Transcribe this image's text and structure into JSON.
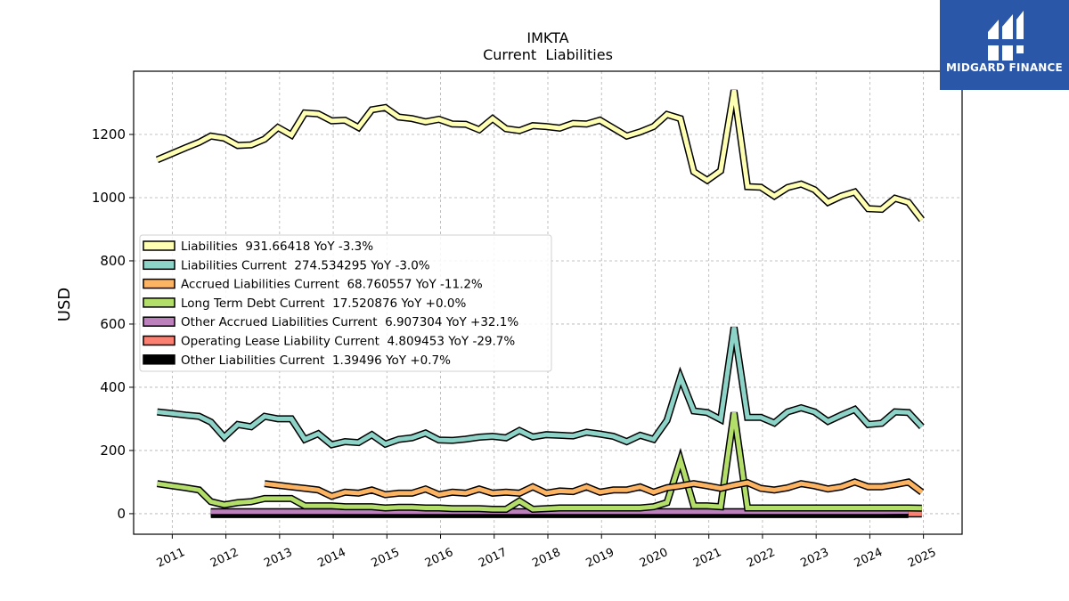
{
  "logo": {
    "text": "MIDGARD FINANCE",
    "bg_color": "#2b57a8"
  },
  "chart_data": {
    "type": "line",
    "title": "IMKTA",
    "subtitle": "Current  Liabilities",
    "ylabel": "USD",
    "xlabel": "",
    "ylim": [
      -65,
      1400
    ],
    "xlim": [
      2010.28,
      2025.72
    ],
    "yticks": [
      0,
      200,
      400,
      600,
      800,
      1000,
      1200
    ],
    "xticks": [
      "2011",
      "2012",
      "2013",
      "2014",
      "2015",
      "2016",
      "2017",
      "2018",
      "2019",
      "2020",
      "2021",
      "2022",
      "2023",
      "2024",
      "2025"
    ],
    "grid": true,
    "legend_position": "center-left",
    "series": [
      {
        "name": "Liabilities",
        "legend": "Liabilities  931.66418 YoY -3.3%",
        "color": "#ffffb3",
        "points": [
          [
            2010.72,
            1120
          ],
          [
            2011.0,
            1140
          ],
          [
            2011.25,
            1158
          ],
          [
            2011.5,
            1175
          ],
          [
            2011.72,
            1195
          ],
          [
            2011.97,
            1188
          ],
          [
            2012.22,
            1165
          ],
          [
            2012.47,
            1167
          ],
          [
            2012.72,
            1185
          ],
          [
            2012.97,
            1222
          ],
          [
            2013.22,
            1198
          ],
          [
            2013.47,
            1268
          ],
          [
            2013.72,
            1265
          ],
          [
            2013.97,
            1243
          ],
          [
            2014.22,
            1245
          ],
          [
            2014.47,
            1222
          ],
          [
            2014.72,
            1278
          ],
          [
            2014.97,
            1285
          ],
          [
            2015.22,
            1255
          ],
          [
            2015.47,
            1250
          ],
          [
            2015.72,
            1240
          ],
          [
            2015.97,
            1248
          ],
          [
            2016.22,
            1233
          ],
          [
            2016.47,
            1232
          ],
          [
            2016.72,
            1215
          ],
          [
            2016.97,
            1250
          ],
          [
            2017.22,
            1218
          ],
          [
            2017.47,
            1212
          ],
          [
            2017.72,
            1228
          ],
          [
            2017.97,
            1225
          ],
          [
            2018.22,
            1220
          ],
          [
            2018.47,
            1235
          ],
          [
            2018.72,
            1233
          ],
          [
            2018.97,
            1245
          ],
          [
            2019.22,
            1220
          ],
          [
            2019.47,
            1195
          ],
          [
            2019.72,
            1208
          ],
          [
            2019.97,
            1225
          ],
          [
            2020.22,
            1263
          ],
          [
            2020.47,
            1250
          ],
          [
            2020.72,
            1082
          ],
          [
            2020.97,
            1055
          ],
          [
            2021.22,
            1085
          ],
          [
            2021.47,
            1340
          ],
          [
            2021.72,
            1035
          ],
          [
            2021.97,
            1033
          ],
          [
            2022.22,
            1005
          ],
          [
            2022.47,
            1032
          ],
          [
            2022.72,
            1043
          ],
          [
            2022.97,
            1025
          ],
          [
            2023.22,
            985
          ],
          [
            2023.47,
            1005
          ],
          [
            2023.72,
            1018
          ],
          [
            2023.97,
            965
          ],
          [
            2024.22,
            963
          ],
          [
            2024.47,
            998
          ],
          [
            2024.72,
            985
          ],
          [
            2024.97,
            930
          ]
        ]
      },
      {
        "name": "Liabilities Current",
        "legend": "Liabilities Current  274.534295 YoY -3.0%",
        "color": "#8dd3c7",
        "points": [
          [
            2010.72,
            322
          ],
          [
            2011.0,
            317
          ],
          [
            2011.25,
            312
          ],
          [
            2011.5,
            308
          ],
          [
            2011.72,
            290
          ],
          [
            2011.97,
            242
          ],
          [
            2012.22,
            282
          ],
          [
            2012.47,
            275
          ],
          [
            2012.72,
            308
          ],
          [
            2012.97,
            300
          ],
          [
            2013.22,
            300
          ],
          [
            2013.47,
            235
          ],
          [
            2013.72,
            253
          ],
          [
            2013.97,
            218
          ],
          [
            2014.22,
            228
          ],
          [
            2014.47,
            225
          ],
          [
            2014.72,
            250
          ],
          [
            2014.97,
            220
          ],
          [
            2015.22,
            235
          ],
          [
            2015.47,
            240
          ],
          [
            2015.72,
            255
          ],
          [
            2015.97,
            233
          ],
          [
            2016.22,
            232
          ],
          [
            2016.47,
            236
          ],
          [
            2016.72,
            242
          ],
          [
            2016.97,
            245
          ],
          [
            2017.22,
            240
          ],
          [
            2017.47,
            263
          ],
          [
            2017.72,
            243
          ],
          [
            2017.97,
            250
          ],
          [
            2018.22,
            248
          ],
          [
            2018.47,
            246
          ],
          [
            2018.72,
            258
          ],
          [
            2018.97,
            252
          ],
          [
            2019.22,
            245
          ],
          [
            2019.47,
            228
          ],
          [
            2019.72,
            248
          ],
          [
            2019.97,
            235
          ],
          [
            2020.22,
            295
          ],
          [
            2020.47,
            432
          ],
          [
            2020.72,
            325
          ],
          [
            2020.97,
            320
          ],
          [
            2021.22,
            298
          ],
          [
            2021.47,
            590
          ],
          [
            2021.72,
            305
          ],
          [
            2021.97,
            305
          ],
          [
            2022.22,
            287
          ],
          [
            2022.47,
            322
          ],
          [
            2022.72,
            335
          ],
          [
            2022.97,
            322
          ],
          [
            2023.22,
            292
          ],
          [
            2023.47,
            312
          ],
          [
            2023.72,
            330
          ],
          [
            2023.97,
            282
          ],
          [
            2024.22,
            286
          ],
          [
            2024.47,
            322
          ],
          [
            2024.72,
            320
          ],
          [
            2024.97,
            275
          ]
        ]
      },
      {
        "name": "Accrued Liabilities Current",
        "legend": "Accrued Liabilities Current  68.760557 YoY -11.2%",
        "color": "#fdb462",
        "points": [
          [
            2012.72,
            95
          ],
          [
            2012.97,
            90
          ],
          [
            2013.22,
            85
          ],
          [
            2013.47,
            80
          ],
          [
            2013.72,
            75
          ],
          [
            2013.97,
            55
          ],
          [
            2014.22,
            68
          ],
          [
            2014.47,
            65
          ],
          [
            2014.72,
            75
          ],
          [
            2014.97,
            60
          ],
          [
            2015.22,
            65
          ],
          [
            2015.47,
            65
          ],
          [
            2015.72,
            78
          ],
          [
            2015.97,
            60
          ],
          [
            2016.22,
            68
          ],
          [
            2016.47,
            65
          ],
          [
            2016.72,
            78
          ],
          [
            2016.97,
            65
          ],
          [
            2017.22,
            68
          ],
          [
            2017.47,
            65
          ],
          [
            2017.72,
            85
          ],
          [
            2017.97,
            65
          ],
          [
            2018.22,
            72
          ],
          [
            2018.47,
            70
          ],
          [
            2018.72,
            85
          ],
          [
            2018.97,
            68
          ],
          [
            2019.22,
            75
          ],
          [
            2019.47,
            75
          ],
          [
            2019.72,
            85
          ],
          [
            2019.97,
            68
          ],
          [
            2020.22,
            82
          ],
          [
            2020.47,
            88
          ],
          [
            2020.72,
            95
          ],
          [
            2020.97,
            88
          ],
          [
            2021.22,
            80
          ],
          [
            2021.47,
            90
          ],
          [
            2021.72,
            98
          ],
          [
            2021.97,
            80
          ],
          [
            2022.22,
            75
          ],
          [
            2022.47,
            82
          ],
          [
            2022.72,
            95
          ],
          [
            2022.97,
            88
          ],
          [
            2023.22,
            78
          ],
          [
            2023.47,
            85
          ],
          [
            2023.72,
            100
          ],
          [
            2023.97,
            85
          ],
          [
            2024.22,
            85
          ],
          [
            2024.47,
            92
          ],
          [
            2024.72,
            100
          ],
          [
            2024.97,
            68
          ]
        ]
      },
      {
        "name": "Long Term Debt Current",
        "legend": "Long Term Debt Current  17.520876 YoY +0.0%",
        "color": "#b3de69",
        "points": [
          [
            2010.72,
            95
          ],
          [
            2011.0,
            88
          ],
          [
            2011.25,
            82
          ],
          [
            2011.5,
            75
          ],
          [
            2011.72,
            38
          ],
          [
            2011.97,
            28
          ],
          [
            2012.22,
            35
          ],
          [
            2012.47,
            38
          ],
          [
            2012.72,
            48
          ],
          [
            2012.97,
            48
          ],
          [
            2013.22,
            48
          ],
          [
            2013.47,
            25
          ],
          [
            2013.72,
            25
          ],
          [
            2013.97,
            25
          ],
          [
            2014.22,
            22
          ],
          [
            2014.47,
            22
          ],
          [
            2014.72,
            22
          ],
          [
            2014.97,
            18
          ],
          [
            2015.22,
            20
          ],
          [
            2015.47,
            20
          ],
          [
            2015.72,
            18
          ],
          [
            2015.97,
            18
          ],
          [
            2016.22,
            16
          ],
          [
            2016.47,
            16
          ],
          [
            2016.72,
            16
          ],
          [
            2016.97,
            14
          ],
          [
            2017.22,
            14
          ],
          [
            2017.47,
            40
          ],
          [
            2017.72,
            14
          ],
          [
            2017.97,
            16
          ],
          [
            2018.22,
            18
          ],
          [
            2018.47,
            18
          ],
          [
            2018.72,
            18
          ],
          [
            2018.97,
            18
          ],
          [
            2019.22,
            18
          ],
          [
            2019.47,
            18
          ],
          [
            2019.72,
            18
          ],
          [
            2019.97,
            22
          ],
          [
            2020.22,
            35
          ],
          [
            2020.47,
            170
          ],
          [
            2020.72,
            25
          ],
          [
            2020.97,
            25
          ],
          [
            2021.22,
            22
          ],
          [
            2021.47,
            320
          ],
          [
            2021.72,
            18
          ],
          [
            2021.97,
            18
          ],
          [
            2022.22,
            18
          ],
          [
            2022.47,
            18
          ],
          [
            2022.72,
            18
          ],
          [
            2022.97,
            18
          ],
          [
            2023.22,
            18
          ],
          [
            2023.47,
            18
          ],
          [
            2023.72,
            18
          ],
          [
            2023.97,
            18
          ],
          [
            2024.22,
            18
          ],
          [
            2024.47,
            18
          ],
          [
            2024.72,
            18
          ],
          [
            2024.97,
            17.5
          ]
        ]
      },
      {
        "name": "Other Accrued Liabilities Current",
        "legend": "Other Accrued Liabilities Current  6.907304 YoY +32.1%",
        "color": "#bc80bd",
        "points": [
          [
            2011.72,
            6
          ],
          [
            2012.22,
            6
          ],
          [
            2012.72,
            6
          ],
          [
            2013.22,
            6
          ],
          [
            2013.72,
            6
          ],
          [
            2014.22,
            6
          ],
          [
            2014.72,
            6
          ],
          [
            2015.22,
            6
          ],
          [
            2015.72,
            6
          ],
          [
            2016.22,
            6
          ],
          [
            2016.72,
            6
          ],
          [
            2017.22,
            6
          ],
          [
            2017.72,
            6
          ],
          [
            2018.22,
            6
          ],
          [
            2018.72,
            6
          ],
          [
            2019.22,
            6
          ],
          [
            2019.72,
            6
          ],
          [
            2020.22,
            6
          ],
          [
            2020.72,
            6
          ],
          [
            2021.22,
            6
          ],
          [
            2021.72,
            6
          ],
          [
            2022.22,
            6
          ],
          [
            2022.72,
            6
          ],
          [
            2023.22,
            6
          ],
          [
            2023.72,
            6
          ],
          [
            2024.22,
            6
          ],
          [
            2024.72,
            6.9
          ]
        ]
      },
      {
        "name": "Operating Lease Liability Current",
        "legend": "Operating Lease Liability Current  4.809453 YoY -29.7%",
        "color": "#fb8072",
        "points": [
          [
            2024.72,
            4.8
          ],
          [
            2024.97,
            4.8
          ]
        ]
      },
      {
        "name": "Other Liabilities Current",
        "legend": "Other Liabilities Current  1.39496 YoY +0.7%",
        "color": "#000000",
        "points": [
          [
            2011.72,
            1.4
          ],
          [
            2012.72,
            1.4
          ],
          [
            2013.72,
            1.4
          ],
          [
            2014.72,
            1.4
          ],
          [
            2015.72,
            1.4
          ],
          [
            2016.72,
            1.4
          ],
          [
            2017.72,
            1.4
          ],
          [
            2018.72,
            1.4
          ],
          [
            2019.72,
            1.4
          ],
          [
            2020.72,
            1.4
          ],
          [
            2021.72,
            1.4
          ],
          [
            2022.72,
            1.4
          ],
          [
            2023.72,
            1.4
          ],
          [
            2024.72,
            1.4
          ]
        ]
      }
    ]
  }
}
